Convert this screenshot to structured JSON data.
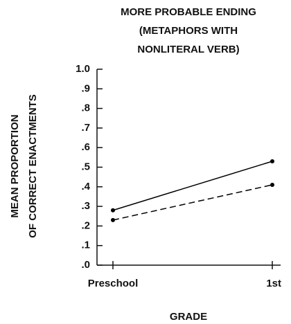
{
  "chart_data": {
    "type": "line",
    "title": [
      "MORE PROBABLE ENDING",
      "(METAPHORS WITH",
      "NONLITERAL VERB)"
    ],
    "y_label": [
      "MEAN PROPORTION",
      "OF CORRECT ENACTMENTS"
    ],
    "x_label": "GRADE",
    "categories": [
      "Preschool",
      "1st"
    ],
    "series": [
      {
        "color": "#000000",
        "dashed": false,
        "values": [
          0.28,
          0.53
        ]
      },
      {
        "color": "#000000",
        "dashed": true,
        "values": [
          0.23,
          0.41
        ]
      }
    ],
    "ylim": [
      0,
      1
    ],
    "yticks": [
      {
        "value": 0,
        "label": ".0"
      },
      {
        "value": 0.1,
        "label": ".1"
      },
      {
        "value": 0.2,
        "label": ".2"
      },
      {
        "value": 0.3,
        "label": ".3"
      },
      {
        "value": 0.4,
        "label": ".4"
      },
      {
        "value": 0.5,
        "label": ".5"
      },
      {
        "value": 0.6,
        "label": ".6"
      },
      {
        "value": 0.7,
        "label": ".7"
      },
      {
        "value": 0.8,
        "label": ".8"
      },
      {
        "value": 0.9,
        "label": ".9"
      },
      {
        "value": 1,
        "label": "1.0"
      }
    ],
    "grid": false
  }
}
